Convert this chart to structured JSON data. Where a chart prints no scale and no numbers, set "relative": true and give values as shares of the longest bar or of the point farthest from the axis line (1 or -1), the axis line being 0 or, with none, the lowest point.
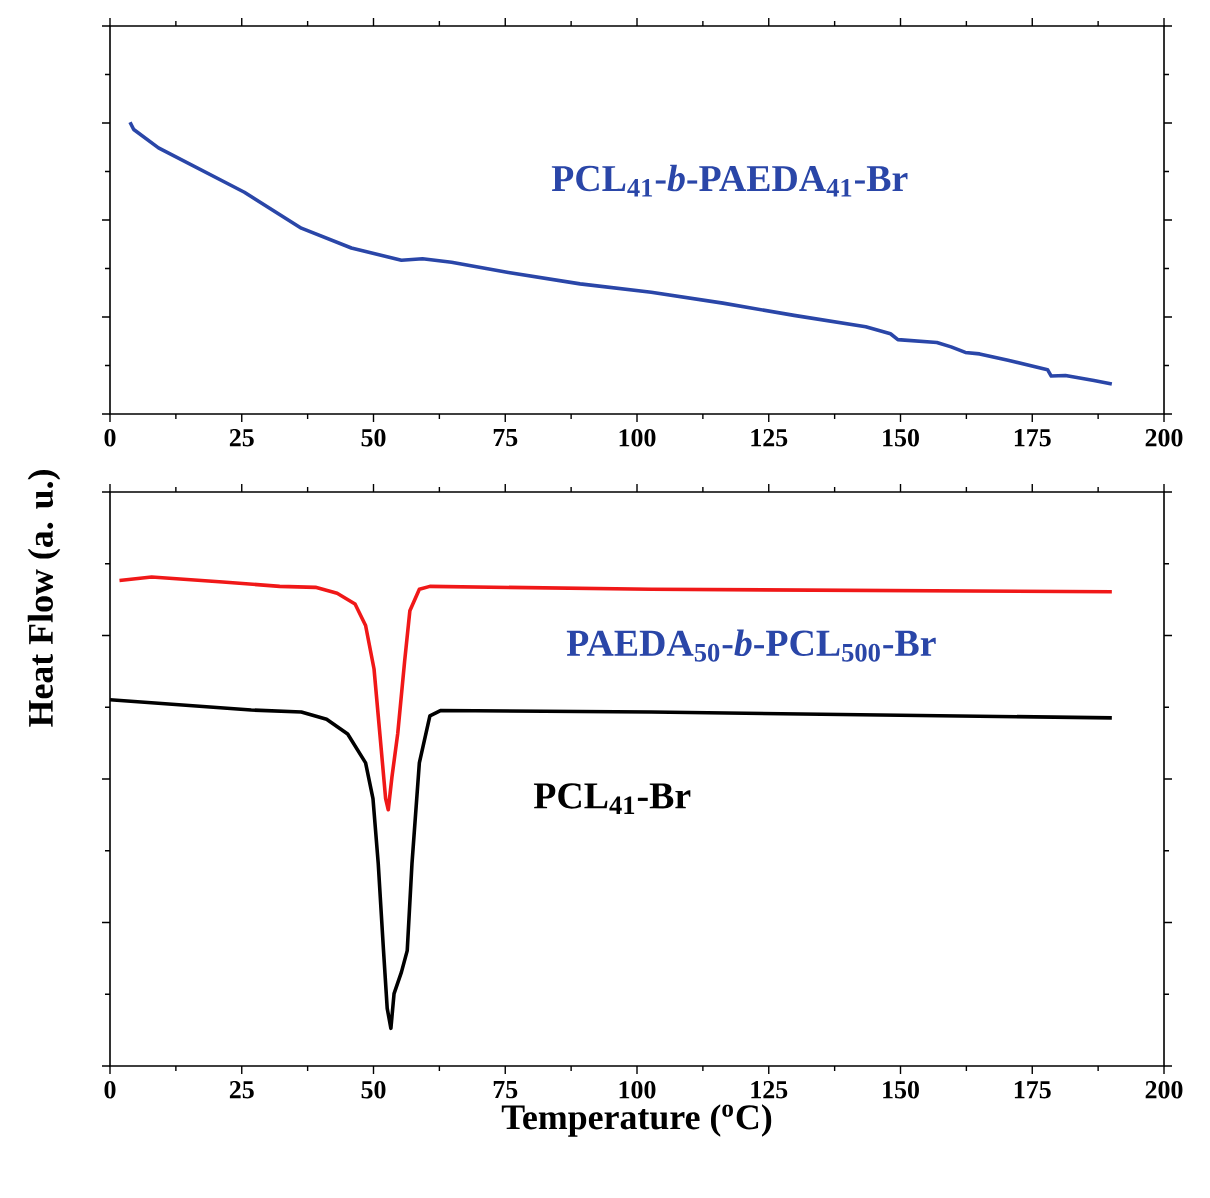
{
  "chart_data": [
    {
      "type": "line",
      "relative": true,
      "ylabel": "Heat Flow (a. u.)",
      "xlim": [
        0,
        200
      ],
      "xticks": [
        0,
        25,
        50,
        75,
        100,
        125,
        150,
        175,
        200
      ],
      "tick_labels": "x",
      "series": [
        {
          "name": "PCL$_{41}$-*b*-PAEDA$_{41}$-Br",
          "color": "#2a46a8",
          "x": [
            3.8,
            4.5,
            9.2,
            25.5,
            36.3,
            45.8,
            55.3,
            59.3,
            64.8,
            75.6,
            89.2,
            102.7,
            116.3,
            129.8,
            143.4,
            148.1,
            149.5,
            156.9,
            159.6,
            162.3,
            165,
            170.4,
            177.9,
            178.6,
            181.3,
            186.7,
            190.1
          ],
          "values": [
            1,
            0.975,
            0.912,
            0.76,
            0.637,
            0.569,
            0.527,
            0.532,
            0.52,
            0.485,
            0.446,
            0.417,
            0.38,
            0.338,
            0.299,
            0.275,
            0.255,
            0.245,
            0.23,
            0.211,
            0.206,
            0.184,
            0.152,
            0.13,
            0.132,
            0.115,
            0.103
          ]
        }
      ]
    },
    {
      "type": "line",
      "relative": true,
      "xlabel": "Temperature ($^{o}$C)",
      "xlim": [
        0,
        200
      ],
      "xticks": [
        0,
        25,
        50,
        75,
        100,
        125,
        150,
        175,
        200
      ],
      "tick_labels": "x",
      "series": [
        {
          "name": "PAEDA$_{50}$-*b*-PCL$_{500}$-Br",
          "color": "#f01818",
          "x": [
            1.8,
            7.9,
            21.4,
            32.2,
            39,
            43.1,
            46.5,
            48.5,
            50.1,
            51.2,
            52.3,
            52.8,
            53.5,
            54.6,
            55.9,
            56.9,
            58.7,
            60.7,
            102.7,
            190.1
          ],
          "values": [
            0.993,
            1,
            0.99,
            0.981,
            0.979,
            0.967,
            0.945,
            0.901,
            0.812,
            0.68,
            0.547,
            0.524,
            0.591,
            0.68,
            0.827,
            0.931,
            0.975,
            0.981,
            0.975,
            0.97
          ]
        },
        {
          "name": "PCL$_{41}$-Br",
          "color": "#000000",
          "x": [
            0,
            26.8,
            36.3,
            41.1,
            45.1,
            48.5,
            49.9,
            50.9,
            51.9,
            52.6,
            53.3,
            53.9,
            55.3,
            56.4,
            57.3,
            58.7,
            60.7,
            62.7,
            102.7,
            190.1
          ],
          "values": [
            0.749,
            0.728,
            0.724,
            0.709,
            0.679,
            0.62,
            0.547,
            0.414,
            0.236,
            0.118,
            0.077,
            0.148,
            0.192,
            0.236,
            0.414,
            0.62,
            0.716,
            0.727,
            0.724,
            0.712
          ]
        }
      ]
    }
  ]
}
